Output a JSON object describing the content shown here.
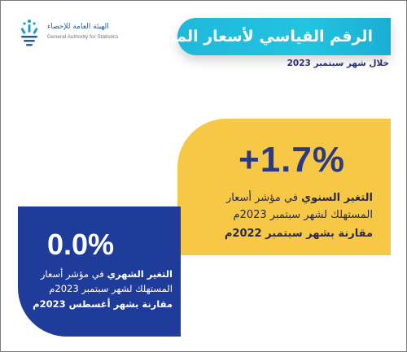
{
  "logo": {
    "name_ar": "الهيئة العامة للإحصاء",
    "name_en": "General Authority for Statistics"
  },
  "header": {
    "title": "الرقم القياسي لأسعار المستهلك",
    "period": "خلال شهر سبتمبر 2023"
  },
  "annual_card": {
    "value": "+1.7%",
    "label_bold": "التغير السنوي",
    "label_rest": " في مؤشر أسعار",
    "line2": "المستهلك لشهر سبتمبر 2023م",
    "line3": "مقارنة بشهر سبتمبر 2022م"
  },
  "monthly_card": {
    "value": "0.0%",
    "label_bold": "التغير الشهري",
    "label_rest": " في مؤشر أسعار",
    "line2": "المستهلك لشهر سبتمبر 2023م",
    "line3": "مقارنة بشهر أغسطس 2023م"
  },
  "colors": {
    "title_banner": "#1fb8da",
    "annual_card": "#f7c845",
    "monthly_card": "#1f3c9a",
    "annual_value": "#2b3a88"
  }
}
